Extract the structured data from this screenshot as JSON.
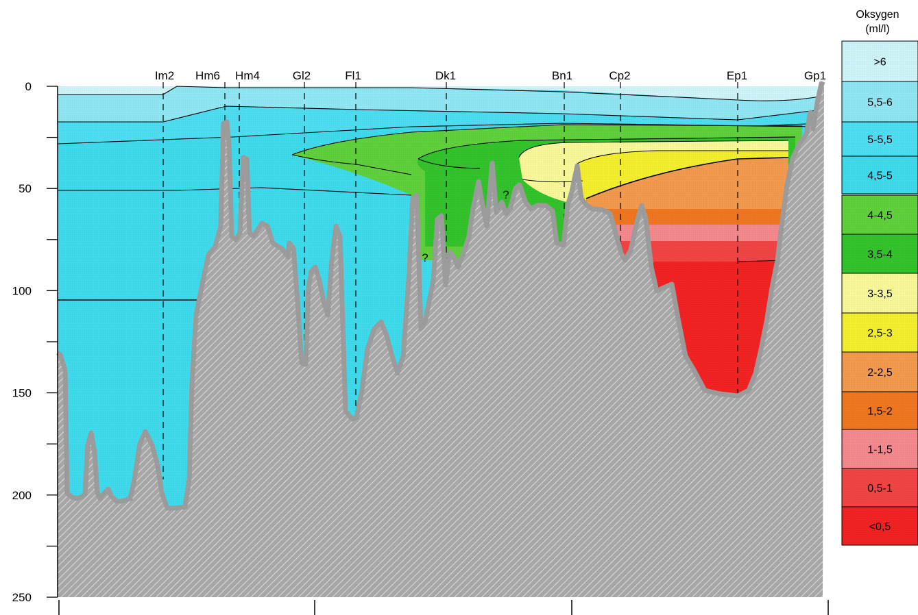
{
  "chart_data": {
    "type": "area",
    "title": "",
    "xlabel": "",
    "ylabel": "",
    "y_axis": {
      "reversed": true,
      "ylim": [
        0,
        250
      ],
      "ticks": [
        0,
        50,
        100,
        150,
        200,
        250
      ]
    },
    "stations": [
      "Im2",
      "Hm6",
      "Hm4",
      "Gl2",
      "Fl1",
      "Dk1",
      "Bn1",
      "Cp2",
      "Ep1",
      "Gp1"
    ],
    "legend": {
      "title_line1": "Oksygen",
      "title_line2": "(ml/l)",
      "placement": "right",
      "classes": [
        {
          "label": ">6",
          "color": "#cdf3f9"
        },
        {
          "label": "5,5-6",
          "color": "#8fe5f2"
        },
        {
          "label": "5-5,5",
          "color": "#4edcf0"
        },
        {
          "label": "4,5-5",
          "color": "#3fd9ec"
        },
        {
          "label": "4-4,5",
          "color": "#5fcf3c"
        },
        {
          "label": "3,5-4",
          "color": "#33c22c"
        },
        {
          "label": "3-3,5",
          "color": "#f7f79a"
        },
        {
          "label": "2,5-3",
          "color": "#f2ee2e"
        },
        {
          "label": "2-2,5",
          "color": "#f19a4e"
        },
        {
          "label": "1,5-2",
          "color": "#ef7620"
        },
        {
          "label": "1-1,5",
          "color": "#f3888d"
        },
        {
          "label": "0,5-1",
          "color": "#f04444"
        },
        {
          "label": "<0,5",
          "color": "#f02222"
        }
      ]
    },
    "annotations": [
      "?",
      "?"
    ]
  }
}
